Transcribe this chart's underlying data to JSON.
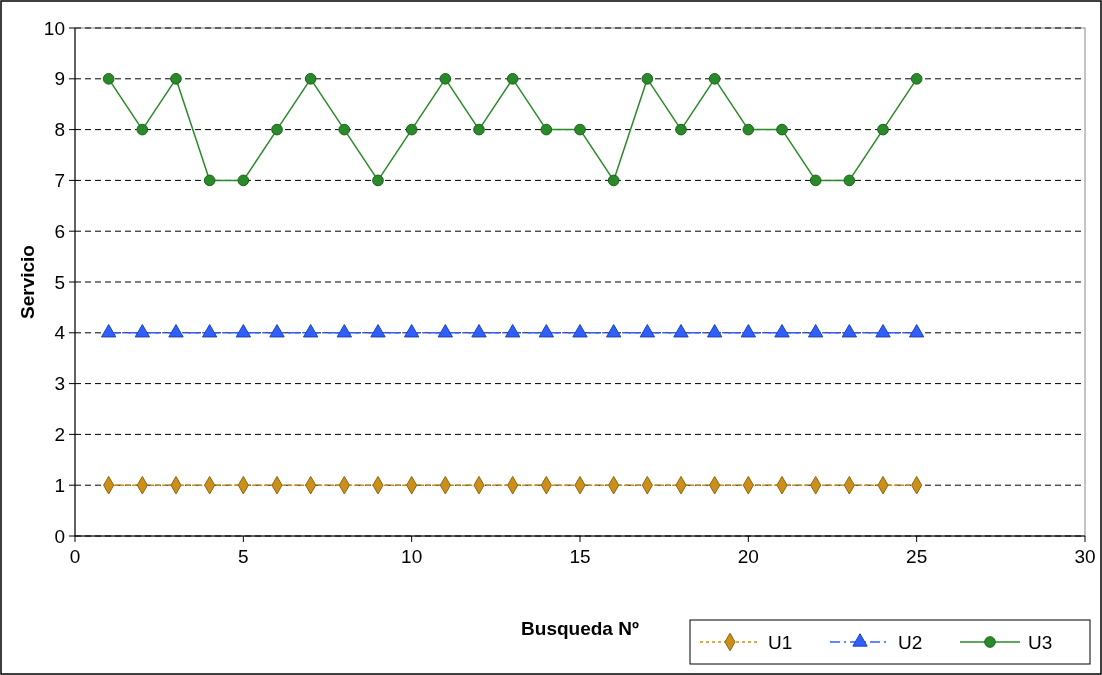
{
  "chart_data": {
    "type": "line",
    "xlabel": "Busqueda Nº",
    "ylabel": "Servicio",
    "x": [
      1,
      2,
      3,
      4,
      5,
      6,
      7,
      8,
      9,
      10,
      11,
      12,
      13,
      14,
      15,
      16,
      17,
      18,
      19,
      20,
      21,
      22,
      23,
      24,
      25
    ],
    "series": [
      {
        "name": "U1",
        "color": "#cc8f1a",
        "marker": "diamond",
        "line_style": "dotted",
        "values": [
          1,
          1,
          1,
          1,
          1,
          1,
          1,
          1,
          1,
          1,
          1,
          1,
          1,
          1,
          1,
          1,
          1,
          1,
          1,
          1,
          1,
          1,
          1,
          1,
          1
        ]
      },
      {
        "name": "U2",
        "color": "#2f5fff",
        "marker": "triangle",
        "line_style": "dashed",
        "values": [
          4,
          4,
          4,
          4,
          4,
          4,
          4,
          4,
          4,
          4,
          4,
          4,
          4,
          4,
          4,
          4,
          4,
          4,
          4,
          4,
          4,
          4,
          4,
          4,
          4
        ]
      },
      {
        "name": "U3",
        "color": "#2a8a2a",
        "marker": "circle",
        "line_style": "solid",
        "values": [
          9,
          8,
          9,
          7,
          7,
          8,
          9,
          8,
          7,
          8,
          9,
          8,
          9,
          8,
          8,
          7,
          9,
          8,
          9,
          8,
          8,
          7,
          7,
          8,
          9
        ]
      }
    ],
    "xlim": [
      0,
      30
    ],
    "xticks": [
      0,
      5,
      10,
      15,
      20,
      25,
      30
    ],
    "ylim": [
      0,
      10
    ],
    "yticks": [
      0,
      1,
      2,
      3,
      4,
      5,
      6,
      7,
      8,
      9,
      10
    ],
    "grid": "y",
    "legend": "bottom right"
  }
}
